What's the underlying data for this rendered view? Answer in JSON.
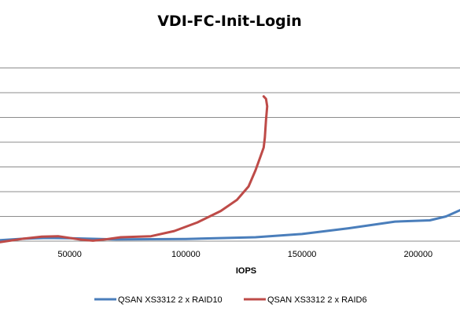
{
  "chart_data": {
    "type": "line",
    "title": "VDI-FC-Init-Login",
    "xlabel": "IOPS",
    "ylabel": "",
    "xlim": [
      20000,
      218000
    ],
    "ylim": [
      0,
      8
    ],
    "xticks": [
      50000,
      100000,
      150000,
      200000
    ],
    "xtick_labels": [
      "50000",
      "100000",
      "150000",
      "200000"
    ],
    "grid": "horizontal",
    "legend": "bottom",
    "series": [
      {
        "name": "QSAN XS3312 2 x RAID10",
        "color": "#4a7ebb",
        "points": [
          [
            20000,
            0.04
          ],
          [
            30000,
            0.1
          ],
          [
            40000,
            0.13
          ],
          [
            50000,
            0.12
          ],
          [
            70000,
            0.07
          ],
          [
            100000,
            0.09
          ],
          [
            130000,
            0.16
          ],
          [
            150000,
            0.29
          ],
          [
            170000,
            0.52
          ],
          [
            190000,
            0.79
          ],
          [
            205000,
            0.84
          ],
          [
            212000,
            1.0
          ],
          [
            218000,
            1.25
          ]
        ]
      },
      {
        "name": "QSAN XS3312 2 x RAID6",
        "color": "#be4b48",
        "points": [
          [
            20000,
            -0.04
          ],
          [
            30000,
            0.1
          ],
          [
            38000,
            0.18
          ],
          [
            45000,
            0.2
          ],
          [
            55000,
            0.06
          ],
          [
            60000,
            0.02
          ],
          [
            66000,
            0.08
          ],
          [
            72000,
            0.16
          ],
          [
            85000,
            0.2
          ],
          [
            95000,
            0.41
          ],
          [
            105000,
            0.76
          ],
          [
            115000,
            1.22
          ],
          [
            122000,
            1.67
          ],
          [
            127000,
            2.21
          ],
          [
            130000,
            2.87
          ],
          [
            132000,
            3.39
          ],
          [
            133500,
            3.78
          ],
          [
            134000,
            4.18
          ],
          [
            134500,
            4.9
          ],
          [
            135000,
            5.45
          ],
          [
            134500,
            5.75
          ],
          [
            133500,
            5.85
          ]
        ]
      }
    ]
  }
}
